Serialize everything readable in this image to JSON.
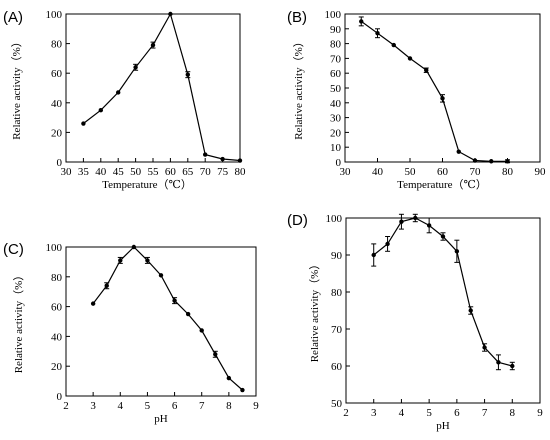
{
  "chart_data": [
    {
      "panel": "(A)",
      "type": "line",
      "xlabel": "Temperature（℃）",
      "ylabel": "Relative activity（%）",
      "xlim": [
        30,
        80
      ],
      "ylim": [
        0,
        100
      ],
      "xticks": [
        "30",
        "35",
        "40",
        "45",
        "50",
        "55",
        "60",
        "65",
        "70",
        "75",
        "80"
      ],
      "yticks": [
        "0",
        "20",
        "40",
        "60",
        "80",
        "100"
      ],
      "series": [
        {
          "x": [
            35,
            40,
            45,
            50,
            55,
            60,
            65,
            70,
            75,
            80
          ],
          "y": [
            26,
            35,
            47,
            64,
            79,
            100,
            59,
            5,
            2,
            1
          ],
          "err": [
            0,
            0,
            0,
            2,
            2,
            0,
            2,
            0,
            0,
            0
          ]
        }
      ]
    },
    {
      "panel": "(B)",
      "type": "line",
      "xlabel": "Temperature（℃）",
      "ylabel": "Relative activity（%）",
      "xlim": [
        30,
        90
      ],
      "ylim": [
        0,
        100
      ],
      "xticks": [
        "30",
        "40",
        "50",
        "60",
        "70",
        "80",
        "90"
      ],
      "yticks": [
        "0",
        "10",
        "20",
        "30",
        "40",
        "50",
        "60",
        "70",
        "80",
        "90",
        "100"
      ],
      "series": [
        {
          "x": [
            35,
            40,
            45,
            50,
            55,
            60,
            65,
            70,
            75,
            80
          ],
          "y": [
            95,
            87,
            79,
            70,
            62,
            43,
            7,
            1,
            0.5,
            0.5
          ],
          "err": [
            3,
            3,
            0,
            0,
            1.5,
            2.5,
            0,
            0,
            0,
            1
          ]
        }
      ]
    },
    {
      "panel": "(C)",
      "type": "line",
      "xlabel": "pH",
      "ylabel": "Relative activity（%）",
      "xlim": [
        2,
        9
      ],
      "ylim": [
        0,
        100
      ],
      "xticks": [
        "2",
        "3",
        "4",
        "5",
        "6",
        "7",
        "8",
        "9"
      ],
      "yticks": [
        "0",
        "20",
        "40",
        "60",
        "80",
        "100"
      ],
      "series": [
        {
          "x": [
            3,
            3.5,
            4,
            4.5,
            5,
            5.5,
            6,
            6.5,
            7,
            7.5,
            8,
            8.5
          ],
          "y": [
            62,
            74,
            91,
            100,
            91,
            81,
            64,
            55,
            44,
            28,
            12,
            4
          ],
          "err": [
            0,
            2,
            2,
            0,
            2,
            0,
            2,
            0,
            0,
            2,
            0,
            0
          ]
        }
      ]
    },
    {
      "panel": "(D)",
      "type": "line",
      "xlabel": "pH",
      "ylabel": "Relative activity（%）",
      "xlim": [
        2,
        9
      ],
      "ylim": [
        50,
        100
      ],
      "xticks": [
        "2",
        "3",
        "4",
        "5",
        "6",
        "7",
        "8",
        "9"
      ],
      "yticks": [
        "50",
        "60",
        "70",
        "80",
        "90",
        "100"
      ],
      "series": [
        {
          "x": [
            3,
            3.5,
            4,
            4.5,
            5,
            5.5,
            6,
            6.5,
            7,
            7.5,
            8
          ],
          "y": [
            90,
            93,
            99,
            100,
            98,
            95,
            91,
            75,
            65,
            61,
            60
          ],
          "err": [
            3,
            2,
            2,
            1,
            2,
            1,
            3,
            1,
            1,
            2,
            1
          ]
        }
      ]
    }
  ]
}
